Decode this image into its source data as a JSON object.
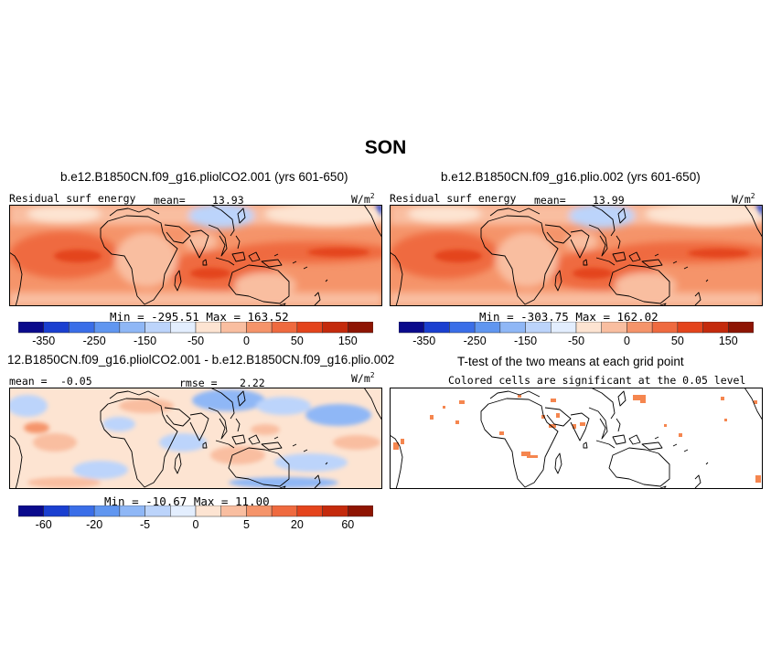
{
  "page": {
    "title": "SON"
  },
  "panels": [
    {
      "title": "b.e12.B1850CN.f09_g16.pliolCO2.001 (yrs 601-650)",
      "variable": "Residual surf energy",
      "mean_label": "mean=",
      "mean_value": "13.93",
      "units": "W/m",
      "units_exp": "2",
      "minmax": "Min = -295.51 Max = 163.52"
    },
    {
      "title": "b.e12.B1850CN.f09_g16.plio.002 (yrs 601-650)",
      "variable": "Residual surf energy",
      "mean_label": "mean=",
      "mean_value": "13.99",
      "units": "W/m",
      "units_exp": "2",
      "minmax": "Min = -303.75 Max = 162.02"
    },
    {
      "title": "12.B1850CN.f09_g16.pliolCO2.001 - b.e12.B1850CN.f09_g16.plio.002",
      "mean_label": "mean =",
      "mean_value": "-0.05",
      "rmse_label": "rmse =",
      "rmse_value": "2.22",
      "units": "W/m",
      "units_exp": "2",
      "minmax": "Min = -10.67 Max = 11.00"
    },
    {
      "title": "T-test of the two means at each grid point",
      "subtitle": "Colored cells are significant at the 0.05 level"
    }
  ],
  "colorbars": {
    "colors": [
      "#0a0a8c",
      "#1a3fd0",
      "#3a6ee8",
      "#6096f0",
      "#8fb7f6",
      "#bcd4fb",
      "#e3eefe",
      "#fde4d2",
      "#f9bea0",
      "#f5946a",
      "#ef6a3f",
      "#e4441c",
      "#c42a0c",
      "#8e1403"
    ],
    "absolute_ticks": [
      "-350",
      "-250",
      "-150",
      "-50",
      "0",
      "50",
      "150"
    ],
    "difference_ticks": [
      "-60",
      "-20",
      "-5",
      "0",
      "5",
      "20",
      "60"
    ]
  },
  "chart_data": [
    {
      "type": "heatmap",
      "title": "b.e12.B1850CN.f09_g16.pliolCO2.001 (yrs 601-650)",
      "variable": "Residual surf energy",
      "units": "W/m2",
      "mean": 13.93,
      "min": -295.51,
      "max": 163.52,
      "colorbar_ticks": [
        -350,
        -250,
        -150,
        -50,
        0,
        50,
        150
      ]
    },
    {
      "type": "heatmap",
      "title": "b.e12.B1850CN.f09_g16.plio.002 (yrs 601-650)",
      "variable": "Residual surf energy",
      "units": "W/m2",
      "mean": 13.99,
      "min": -303.75,
      "max": 162.02,
      "colorbar_ticks": [
        -350,
        -250,
        -150,
        -50,
        0,
        50,
        150
      ]
    },
    {
      "type": "heatmap",
      "title": "12.B1850CN.f09_g16.pliolCO2.001 - b.e12.B1850CN.f09_g16.plio.002",
      "units": "W/m2",
      "mean": -0.05,
      "rmse": 2.22,
      "min": -10.67,
      "max": 11.0,
      "colorbar_ticks": [
        -60,
        -20,
        -5,
        0,
        5,
        20,
        60
      ]
    },
    {
      "type": "heatmap",
      "title": "T-test of the two means at each grid point",
      "note": "Colored cells are significant at the 0.05 level"
    }
  ]
}
